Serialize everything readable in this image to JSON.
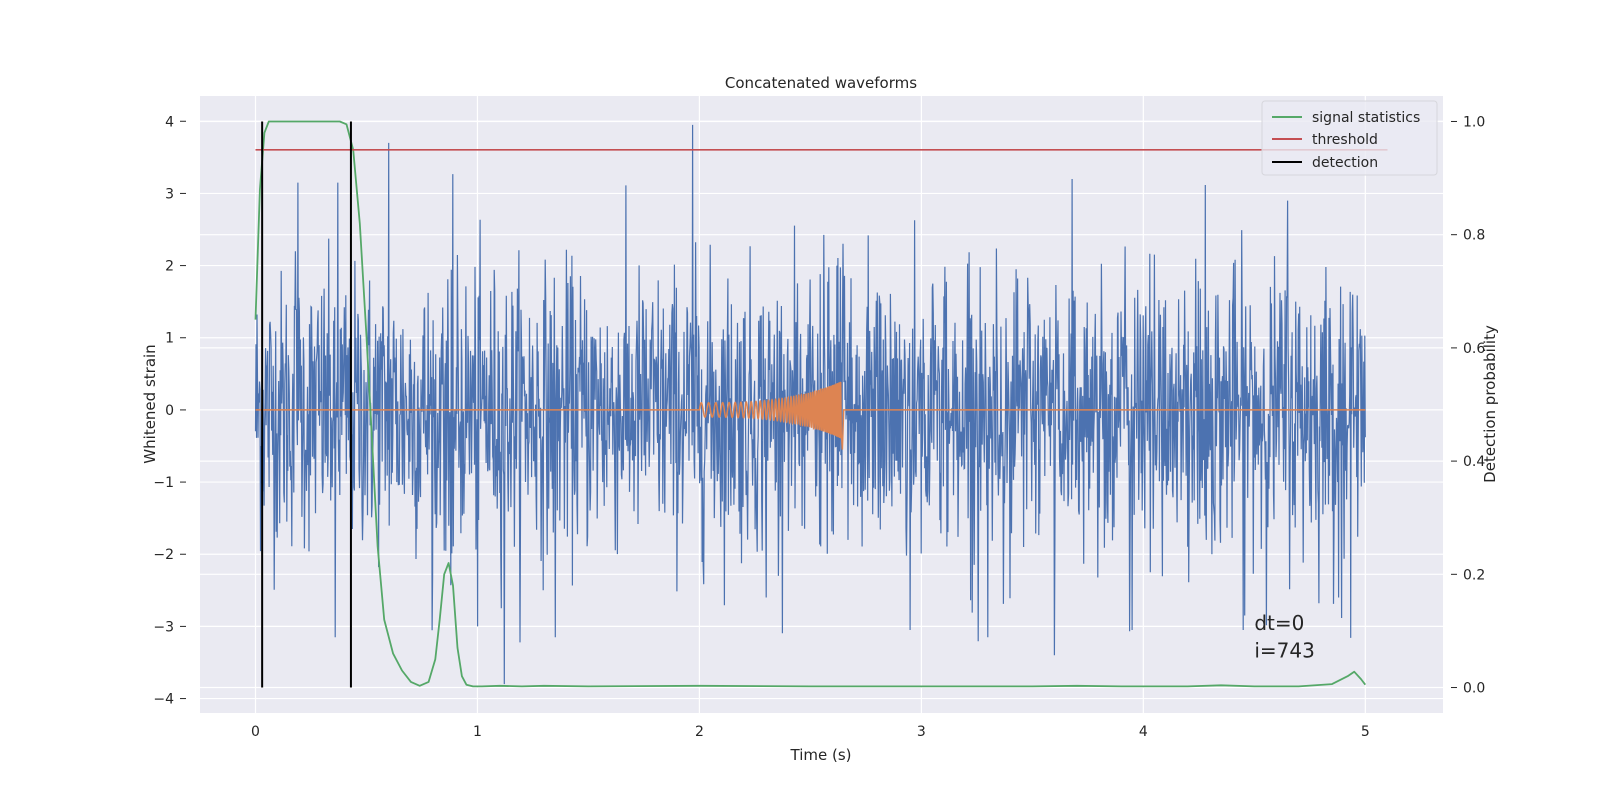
{
  "chart_data": {
    "type": "line",
    "title": "Concatenated waveforms",
    "xlabel": "Time (s)",
    "ylabel": "Whitened strain",
    "y2label": "Detection probability",
    "xlim": [
      -0.25,
      5.35
    ],
    "ylim": [
      -4.2,
      4.35
    ],
    "y2lim": [
      -0.045,
      1.045
    ],
    "xticks": [
      0,
      1,
      2,
      3,
      4,
      5
    ],
    "xtick_labels": [
      "0",
      "1",
      "2",
      "3",
      "4",
      "5"
    ],
    "yticks": [
      -4,
      -3,
      -2,
      -1,
      0,
      1,
      2,
      3,
      4
    ],
    "ytick_labels": [
      "−4",
      "−3",
      "−2",
      "−1",
      "0",
      "1",
      "2",
      "3",
      "4"
    ],
    "y2ticks": [
      0.0,
      0.2,
      0.4,
      0.6,
      0.8,
      1.0
    ],
    "y2tick_labels": [
      "0.0",
      "0.2",
      "0.4",
      "0.6",
      "0.8",
      "1.0"
    ],
    "grid": true,
    "legend_position": "upper-right",
    "legend": [
      {
        "label": "signal statistics",
        "color": "#55a868"
      },
      {
        "label": "threshold",
        "color": "#c44e52"
      },
      {
        "label": "detection",
        "color": "#000000"
      }
    ],
    "series": [
      {
        "role": "strain",
        "axis": "left",
        "color": "#4c72b0",
        "x_range": [
          0,
          5
        ],
        "noise_sigma": 0.95,
        "spikes": [
          {
            "x": 0.18,
            "y": 2.2
          },
          {
            "x": 0.19,
            "y": -2.0
          },
          {
            "x": 0.19,
            "y": 3.15
          },
          {
            "x": 0.37,
            "y": 3.15
          },
          {
            "x": 0.6,
            "y": 3.7
          },
          {
            "x": 0.36,
            "y": -1.9
          },
          {
            "x": 0.36,
            "y": -3.15
          },
          {
            "x": 1.12,
            "y": -3.8
          },
          {
            "x": 1.97,
            "y": 3.95
          },
          {
            "x": 1.0,
            "y": -3.0
          },
          {
            "x": 1.35,
            "y": -3.15
          },
          {
            "x": 2.62,
            "y": 2.0
          },
          {
            "x": 2.3,
            "y": -2.6
          },
          {
            "x": 2.95,
            "y": -3.05
          },
          {
            "x": 3.3,
            "y": -3.15
          },
          {
            "x": 3.6,
            "y": -3.4
          },
          {
            "x": 3.68,
            "y": 3.2
          },
          {
            "x": 3.95,
            "y": -3.05
          },
          {
            "x": 4.45,
            "y": -3.05
          },
          {
            "x": 4.65,
            "y": 2.9
          },
          {
            "x": 4.88,
            "y": -2.6
          }
        ]
      },
      {
        "role": "injected-waveform",
        "axis": "left",
        "color": "#dd8452",
        "chirp_start": 2.0,
        "chirp_end": 2.64,
        "amplitude_start": 0.1,
        "amplitude_end": 0.4,
        "frequency_start": 30,
        "frequency_end": 150
      },
      {
        "name": "signal statistics",
        "axis": "right",
        "color": "#55a868",
        "x": [
          0.0,
          0.02,
          0.04,
          0.06,
          0.08,
          0.1,
          0.2,
          0.3,
          0.38,
          0.41,
          0.44,
          0.47,
          0.5,
          0.53,
          0.55,
          0.58,
          0.62,
          0.66,
          0.7,
          0.74,
          0.78,
          0.81,
          0.83,
          0.85,
          0.87,
          0.89,
          0.91,
          0.93,
          0.95,
          0.98,
          1.02,
          1.1,
          1.2,
          1.3,
          1.5,
          2.0,
          2.5,
          3.0,
          3.5,
          3.7,
          3.9,
          4.2,
          4.35,
          4.5,
          4.7,
          4.85,
          4.92,
          4.95,
          4.98,
          5.0
        ],
        "y": [
          0.65,
          0.88,
          0.98,
          1.0,
          1.0,
          1.0,
          1.0,
          1.0,
          1.0,
          0.995,
          0.95,
          0.82,
          0.62,
          0.4,
          0.25,
          0.12,
          0.06,
          0.03,
          0.01,
          0.003,
          0.01,
          0.05,
          0.12,
          0.2,
          0.22,
          0.18,
          0.07,
          0.02,
          0.005,
          0.002,
          0.002,
          0.003,
          0.002,
          0.003,
          0.002,
          0.003,
          0.002,
          0.002,
          0.002,
          0.003,
          0.002,
          0.002,
          0.004,
          0.002,
          0.002,
          0.006,
          0.02,
          0.028,
          0.015,
          0.005
        ]
      },
      {
        "name": "threshold",
        "axis": "right",
        "color": "#c44e52",
        "x": [
          0.0,
          5.1
        ],
        "y": [
          0.95,
          0.95
        ]
      },
      {
        "name": "detection",
        "axis": "right",
        "color": "#000000",
        "events": [
          0.03,
          0.43
        ],
        "y": [
          0.0,
          1.0
        ]
      }
    ],
    "annotations": [
      {
        "text": "dt=0",
        "x": 4.5,
        "y": -3.05
      },
      {
        "text": "i=743",
        "x": 4.5,
        "y": -3.43
      }
    ]
  }
}
